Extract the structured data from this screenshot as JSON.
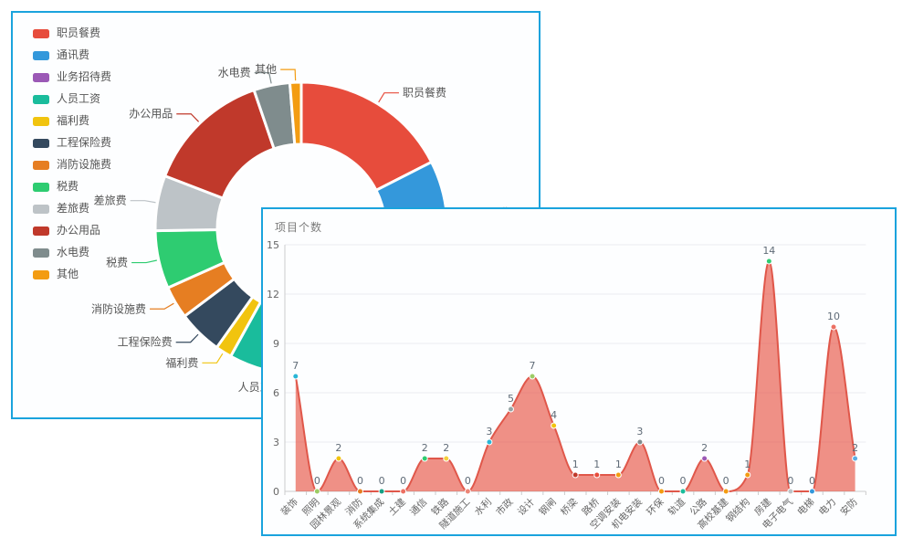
{
  "app": {
    "background": "#ffffff",
    "panel_border_color": "#1aa3dd"
  },
  "chart_data": [
    {
      "id": "expense-donut",
      "type": "pie",
      "subtype": "donut",
      "legend_position": "left",
      "note": "values are percent shares estimated from arc angles; lower-right arc is occluded by the front panel",
      "series": [
        {
          "name": "职员餐费",
          "value": 17.5,
          "color": "#e74c3c"
        },
        {
          "name": "通讯费",
          "value": 11.9,
          "color": "#3498db"
        },
        {
          "name": "业务招待费",
          "value": 12.8,
          "color": "#9b59b6"
        },
        {
          "name": "人员工资",
          "value": 15.8,
          "color": "#1abc9c"
        },
        {
          "name": "福利费",
          "value": 1.8,
          "color": "#f1c40f"
        },
        {
          "name": "工程保险费",
          "value": 4.9,
          "color": "#34495e"
        },
        {
          "name": "消防设施费",
          "value": 3.6,
          "color": "#e67e22"
        },
        {
          "name": "税费",
          "value": 6.4,
          "color": "#2ecc71"
        },
        {
          "name": "差旅费",
          "value": 6.1,
          "color": "#bdc3c7"
        },
        {
          "name": "办公用品",
          "value": 13.9,
          "color": "#c0392b"
        },
        {
          "name": "水电费",
          "value": 4.0,
          "color": "#7f8c8d"
        },
        {
          "name": "其他",
          "value": 1.25,
          "color": "#f39c12"
        }
      ],
      "label_text_color": "#555555"
    },
    {
      "id": "project-count-area",
      "type": "area",
      "title": "项目个数",
      "categories": [
        "装饰",
        "照明",
        "园林景观",
        "消防",
        "系统集成",
        "土建",
        "通信",
        "铁路",
        "隧道施工",
        "水利",
        "市政",
        "设计",
        "钢闸",
        "桥梁",
        "路桥",
        "空调安装",
        "机电安装",
        "环保",
        "轨道",
        "公路",
        "高校基建",
        "钢结构",
        "房建",
        "电子电气",
        "电梯",
        "电力",
        "安防"
      ],
      "values": [
        7,
        0,
        2,
        0,
        0,
        0,
        2,
        2,
        0,
        3,
        5,
        7,
        4,
        1,
        1,
        1,
        3,
        0,
        0,
        2,
        0,
        1,
        14,
        0,
        0,
        10,
        2
      ],
      "point_colors": [
        "#29b6d6",
        "#9ccc65",
        "#f1c40f",
        "#e67e22",
        "#16a085",
        "#ec7063",
        "#2ecc71",
        "#f4d03f",
        "#ec8677",
        "#29b6d6",
        "#95a5a6",
        "#9ccc65",
        "#f1c40f",
        "#c0392b",
        "#e74c3c",
        "#f39c12",
        "#7f8c8d",
        "#f39c12",
        "#1abc9c",
        "#9b59b6",
        "#f39c12",
        "#f39c12",
        "#2ecc71",
        "#bdc3c7",
        "#3498db",
        "#ec7063",
        "#5dade2"
      ],
      "line_color": "#e0574a",
      "area_color": "rgba(231,76,60,0.62)",
      "ylim": [
        0,
        15
      ],
      "y_ticks": [
        0,
        3,
        6,
        9,
        12,
        15
      ],
      "grid": true,
      "x_label_rotation": 45,
      "value_label_color": "#5f6b77",
      "axis_color": "#cccccc",
      "tick_label_color": "#666666",
      "smooth": true
    }
  ]
}
